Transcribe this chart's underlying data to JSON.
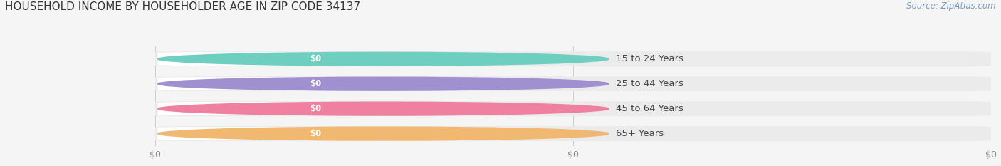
{
  "title": "HOUSEHOLD INCOME BY HOUSEHOLDER AGE IN ZIP CODE 34137",
  "source_text": "Source: ZipAtlas.com",
  "categories": [
    "15 to 24 Years",
    "25 to 44 Years",
    "45 to 64 Years",
    "65+ Years"
  ],
  "values": [
    0,
    0,
    0,
    0
  ],
  "bar_colors": [
    "#6ecfc0",
    "#a090d0",
    "#f080a0",
    "#f0b870"
  ],
  "bar_value_labels": [
    "$0",
    "$0",
    "$0",
    "$0"
  ],
  "x_tick_labels": [
    "$0",
    "$0",
    "$0"
  ],
  "x_tick_positions": [
    0.0,
    0.5,
    1.0
  ],
  "background_color": "#f5f5f5",
  "bar_bg_color": "#ebebeb",
  "bar_inner_color": "#ffffff",
  "title_fontsize": 11,
  "source_fontsize": 8.5,
  "label_fontsize": 9.5,
  "value_fontsize": 8.5,
  "tick_fontsize": 9,
  "fig_width": 14.06,
  "fig_height": 2.33
}
